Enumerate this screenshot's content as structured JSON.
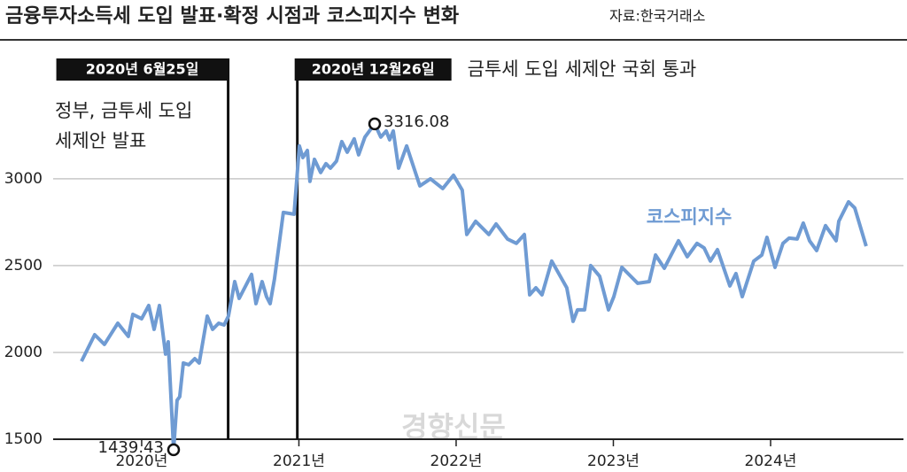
{
  "chart_data": {
    "type": "line",
    "title": "금융투자소득세 도입 발표·확정 시점과 코스피지수 변화",
    "source": "자료:한국거래소",
    "watermark": "경향신문",
    "x": [
      2019.617,
      2019.701,
      2019.763,
      2019.848,
      2019.915,
      2019.944,
      2020.0,
      2020.045,
      2020.079,
      2020.113,
      2020.152,
      2020.169,
      2020.203,
      2020.225,
      2020.242,
      2020.265,
      2020.299,
      2020.338,
      2020.366,
      2020.417,
      2020.451,
      2020.49,
      2020.524,
      2020.552,
      2020.592,
      2020.62,
      2020.699,
      2020.727,
      2020.766,
      2020.794,
      2020.817,
      2020.845,
      2020.901,
      2020.969,
      2021.003,
      2021.025,
      2021.054,
      2021.07,
      2021.099,
      2021.138,
      2021.172,
      2021.2,
      2021.239,
      2021.273,
      2021.307,
      2021.352,
      2021.38,
      2021.42,
      2021.482,
      2021.521,
      2021.555,
      2021.577,
      2021.6,
      2021.634,
      2021.685,
      2021.769,
      2021.837,
      2021.915,
      2021.983,
      2022.039,
      2022.068,
      2022.124,
      2022.208,
      2022.254,
      2022.327,
      2022.383,
      2022.434,
      2022.468,
      2022.507,
      2022.546,
      2022.608,
      2022.704,
      2022.744,
      2022.772,
      2022.817,
      2022.856,
      2022.913,
      2022.969,
      2023.003,
      2023.054,
      2023.11,
      2023.155,
      2023.228,
      2023.268,
      2023.324,
      2023.414,
      2023.47,
      2023.532,
      2023.577,
      2023.617,
      2023.662,
      2023.741,
      2023.78,
      2023.82,
      2023.893,
      2023.944,
      2023.977,
      2024.028,
      2024.079,
      2024.118,
      2024.169,
      2024.208,
      2024.248,
      2024.293,
      2024.349,
      2024.417,
      2024.434,
      2024.496,
      2024.535,
      2024.608
    ],
    "series": [
      {
        "name": "코스피지수",
        "color": "#6f9bd3",
        "values": [
          1949,
          2102,
          2046,
          2168,
          2092,
          2219,
          2194,
          2270,
          2133,
          2270,
          1990,
          2061,
          1439.43,
          1724,
          1745,
          1939,
          1929,
          1964,
          1939,
          2209,
          2133,
          2168,
          2158,
          2209,
          2408,
          2311,
          2449,
          2281,
          2408,
          2321,
          2281,
          2423,
          2806,
          2796,
          3189,
          3122,
          3163,
          2985,
          3112,
          3036,
          3087,
          3061,
          3102,
          3214,
          3153,
          3230,
          3138,
          3240,
          3316.08,
          3240,
          3275,
          3224,
          3275,
          3061,
          3189,
          2959,
          3000,
          2944,
          3020,
          2934,
          2679,
          2755,
          2679,
          2740,
          2653,
          2628,
          2679,
          2332,
          2372,
          2332,
          2526,
          2372,
          2179,
          2245,
          2245,
          2500,
          2439,
          2245,
          2321,
          2490,
          2439,
          2398,
          2408,
          2561,
          2485,
          2643,
          2551,
          2628,
          2602,
          2526,
          2592,
          2383,
          2454,
          2321,
          2526,
          2561,
          2663,
          2490,
          2628,
          2658,
          2653,
          2745,
          2643,
          2587,
          2730,
          2643,
          2755,
          2867,
          2832,
          2612
        ]
      }
    ],
    "xlim": [
      2019.437,
      2024.845
    ],
    "ylim": [
      1500,
      3800
    ],
    "xticks": [
      {
        "value": 2020,
        "label": "2020년"
      },
      {
        "value": 2021,
        "label": "2021년"
      },
      {
        "value": 2022,
        "label": "2022년"
      },
      {
        "value": 2023,
        "label": "2023년"
      },
      {
        "value": 2024,
        "label": "2024년"
      }
    ],
    "yticks": [
      1500,
      2000,
      2500,
      3000
    ],
    "grid": true,
    "events": [
      {
        "x": 2020.55,
        "label": "2020년 6월25일",
        "note": [
          "정부, 금투세 도입",
          "세제안 발표"
        ]
      },
      {
        "x": 2020.99,
        "label": "2020년 12월26일",
        "note": [
          "금투세 도입 세제안 국회 통과"
        ]
      }
    ]
  }
}
